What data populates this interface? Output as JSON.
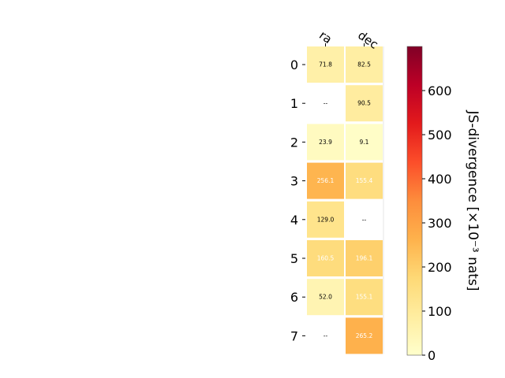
{
  "chart_data": {
    "type": "heatmap",
    "columns": [
      "ra",
      "dec"
    ],
    "rows": [
      "0",
      "1",
      "2",
      "3",
      "4",
      "5",
      "6",
      "7"
    ],
    "values": [
      [
        71.8,
        82.5
      ],
      [
        null,
        90.5
      ],
      [
        23.9,
        9.1
      ],
      [
        256.1,
        155.4
      ],
      [
        129.0,
        null
      ],
      [
        160.5,
        196.1
      ],
      [
        52.0,
        155.1
      ],
      [
        null,
        265.2
      ]
    ],
    "cell_labels": [
      [
        "71.8",
        "82.5"
      ],
      [
        "--",
        "90.5"
      ],
      [
        "23.9",
        "9.1"
      ],
      [
        "256.1",
        "155.4"
      ],
      [
        "129.0",
        "--"
      ],
      [
        "160.5",
        "196.1"
      ],
      [
        "52.0",
        "155.1"
      ],
      [
        "--",
        "265.2"
      ]
    ],
    "missing_label": "--",
    "colorbar": {
      "label": "JS-divergence [×10⁻³ nats]",
      "range": [
        0,
        700
      ],
      "ticks": [
        0,
        100,
        200,
        300,
        400,
        500,
        600
      ],
      "tick_labels": [
        "0",
        "100",
        "200",
        "300",
        "400",
        "500",
        "600"
      ],
      "colormap": "YlOrRd",
      "colors": [
        "#ffffcc",
        "#ffeda0",
        "#fed976",
        "#feb24c",
        "#fd8d3c",
        "#fc4e2a",
        "#e31a1c",
        "#bd0026",
        "#800026"
      ]
    }
  }
}
